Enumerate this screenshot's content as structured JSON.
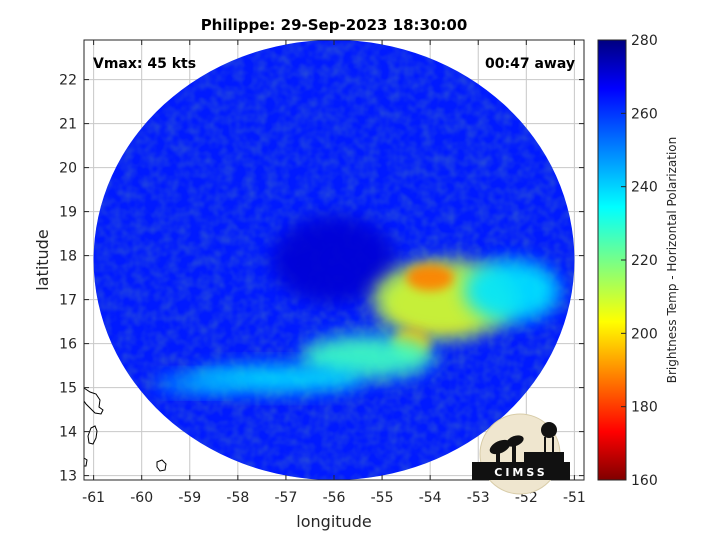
{
  "chart_data": {
    "type": "heatmap",
    "title": "Philippe: 29-Sep-2023 18:30:00",
    "xlabel": "longitude",
    "ylabel": "latitude",
    "xlim": [
      -61.2,
      -50.8
    ],
    "ylim": [
      12.9,
      22.9
    ],
    "x_ticks": [
      -61,
      -60,
      -59,
      -58,
      -57,
      -56,
      -55,
      -54,
      -53,
      -52,
      -51
    ],
    "y_ticks": [
      13,
      14,
      15,
      16,
      17,
      18,
      19,
      20,
      21,
      22
    ],
    "grid": true,
    "annotations": {
      "left": "Vmax: 45 kts",
      "right": "00:47 away"
    },
    "colorbar": {
      "label": "Brightness Temp - Horizontal Polarization",
      "range": [
        160,
        280
      ],
      "ticks": [
        160,
        180,
        200,
        220,
        240,
        260,
        280
      ],
      "colormap": "jet"
    },
    "swath": {
      "center": [
        -56.0,
        17.9
      ],
      "radius_deg": 5.0,
      "background_value": 262
    },
    "features": [
      {
        "name": "eye",
        "lon": -56.0,
        "lat": 17.9,
        "rx": 1.3,
        "ry": 1.0,
        "value": 270
      },
      {
        "name": "convection-core",
        "lon": -53.8,
        "lat": 16.9,
        "rx": 1.0,
        "ry": 0.6,
        "value": 182
      },
      {
        "name": "convection-outer",
        "lon": -53.7,
        "lat": 17.0,
        "rx": 1.5,
        "ry": 0.9,
        "value": 212
      },
      {
        "name": "cell-north",
        "lon": -54.0,
        "lat": 17.5,
        "rx": 0.5,
        "ry": 0.3,
        "value": 190
      },
      {
        "name": "cell-south",
        "lon": -54.4,
        "lat": 16.0,
        "rx": 0.4,
        "ry": 0.35,
        "value": 198
      },
      {
        "name": "band-east",
        "lon": -52.3,
        "lat": 17.2,
        "rx": 1.0,
        "ry": 0.7,
        "value": 238
      },
      {
        "name": "band-mid",
        "lon": -55.3,
        "lat": 15.7,
        "rx": 1.4,
        "ry": 0.5,
        "value": 228
      },
      {
        "name": "band-west",
        "lon": -57.2,
        "lat": 15.2,
        "rx": 1.8,
        "ry": 0.3,
        "value": 238
      },
      {
        "name": "band-tail",
        "lon": -58.8,
        "lat": 15.1,
        "rx": 0.9,
        "ry": 0.2,
        "value": 245
      }
    ],
    "logo_text": "CIMSS"
  },
  "colors": {
    "swath_blue": "#1848e6",
    "eye_blue": "#102a9c",
    "coast": "#000000"
  }
}
